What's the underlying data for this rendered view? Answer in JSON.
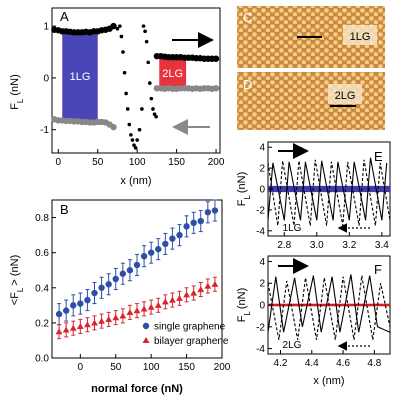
{
  "figure": {
    "panels": {
      "A": {
        "letter": "A",
        "xlabel": "x (nm)",
        "ylabel": "F",
        "ylabel_sub": "L",
        "ylabel_unit": "(nN)",
        "xticks": [
          "0",
          "50",
          "100",
          "150",
          "200"
        ],
        "yticks": [
          "1",
          "0",
          "-1"
        ],
        "region_labels": [
          "1LG",
          "2LG"
        ],
        "colors": {
          "region_1lg": "#4a46b8",
          "region_2lg": "#e8333f",
          "trace": "#000000",
          "retrace": "#888888",
          "arrow_retrace": "#888888"
        }
      },
      "B": {
        "letter": "B",
        "xlabel": "normal force (nN)",
        "ylabel": "<F",
        "ylabel_sub": "L",
        "ylabel_unit": "> (nN)",
        "xticks": [
          "0",
          "50",
          "100",
          "150",
          "200"
        ],
        "yticks": [
          "0.0",
          "0.2",
          "0.4",
          "0.6",
          "0.8"
        ],
        "legend": [
          {
            "label": "single graphene",
            "color": "#2e4fa8",
            "marker": "circle"
          },
          {
            "label": "bilayer graphene",
            "color": "#d9262e",
            "marker": "triangle"
          }
        ]
      },
      "C": {
        "letter": "C",
        "label": "1LG",
        "tone": "#d99a52"
      },
      "D": {
        "letter": "D",
        "label": "2LG",
        "tone": "#d99a52"
      },
      "E": {
        "letter": "E",
        "label": "1LG",
        "ylabel": "F",
        "ylabel_sub": "L",
        "ylabel_unit": "(nN)",
        "xticks": [
          "2.8",
          "3.0",
          "3.2",
          "3.4"
        ],
        "yticks": [
          "4",
          "2",
          "0",
          "-2",
          "-4"
        ],
        "band_color": "#3c3cb0"
      },
      "F": {
        "letter": "F",
        "label": "2LG",
        "xlabel": "x (nm)",
        "ylabel": "F",
        "ylabel_sub": "L",
        "ylabel_unit": "(nN)",
        "xticks": [
          "4.2",
          "4.4",
          "4.6",
          "4.8"
        ],
        "yticks": [
          "4",
          "2",
          "0",
          "-2",
          "-4"
        ],
        "band_color": "#d21f26"
      }
    }
  },
  "chart_data": [
    {
      "type": "scatter",
      "panel": "A",
      "xlabel": "x (nm)",
      "ylabel": "F_L (nN)",
      "xlim": [
        -8,
        205
      ],
      "ylim": [
        -1.45,
        1.35
      ],
      "series": [
        {
          "x": [
            -5,
            0,
            5,
            10,
            15,
            20,
            25,
            30,
            35,
            40,
            45,
            50,
            55,
            60,
            65,
            70
          ],
          "values": [
            0.93,
            0.92,
            0.9,
            0.9,
            0.89,
            0.88,
            0.88,
            0.88,
            0.89,
            0.88,
            0.9,
            0.9,
            0.92,
            0.93,
            0.95,
            1.0
          ]
        },
        {
          "x": [
            -5,
            0,
            5,
            10,
            15,
            20,
            25,
            30,
            35,
            40,
            45,
            50,
            55,
            60,
            65,
            70
          ],
          "values": [
            -0.8,
            -0.82,
            -0.82,
            -0.83,
            -0.83,
            -0.84,
            -0.84,
            -0.85,
            -0.85,
            -0.86,
            -0.86,
            -0.85,
            -0.85,
            -0.86,
            -0.9,
            -0.95
          ]
        },
        {
          "x": [
            75,
            78,
            80,
            82,
            84,
            86,
            88,
            90,
            92,
            94,
            96,
            98,
            100,
            103,
            106
          ],
          "values": [
            0.95,
            1.0,
            0.8,
            0.5,
            0.1,
            -0.3,
            -0.6,
            -0.9,
            -1.1,
            -1.2,
            -1.3,
            -1.35,
            -1.2,
            -1.0,
            -0.6
          ]
        },
        {
          "x": [
            108,
            110,
            112,
            114,
            116,
            118,
            120,
            122,
            124
          ],
          "values": [
            1.0,
            0.9,
            0.7,
            0.3,
            -0.1,
            -0.4,
            -0.6,
            -0.7,
            -0.75
          ]
        },
        {
          "x": [
            125,
            130,
            135,
            140,
            145,
            150,
            155,
            160,
            165,
            170,
            175,
            180,
            185,
            190,
            195,
            200
          ],
          "values": [
            0.42,
            0.42,
            0.41,
            0.4,
            0.4,
            0.4,
            0.4,
            0.39,
            0.39,
            0.39,
            0.38,
            0.38,
            0.37,
            0.37,
            0.37,
            0.37
          ]
        },
        {
          "x": [
            125,
            130,
            135,
            140,
            145,
            150,
            155,
            160,
            165,
            170,
            175,
            180,
            185,
            190,
            195,
            200
          ],
          "values": [
            -0.2,
            -0.2,
            -0.21,
            -0.2,
            -0.21,
            -0.21,
            -0.2,
            -0.2,
            -0.2,
            -0.21,
            -0.2,
            -0.21,
            -0.2,
            -0.2,
            -0.21,
            -0.2
          ]
        }
      ]
    },
    {
      "type": "scatter",
      "panel": "B",
      "xlabel": "normal force (nN)",
      "ylabel": "<F_L> (nN)",
      "xlim": [
        -40,
        200
      ],
      "ylim": [
        0,
        0.9
      ],
      "legend": [
        "single graphene",
        "bilayer graphene"
      ],
      "series": [
        {
          "name": "single graphene",
          "x": [
            -30,
            -20,
            -10,
            0,
            10,
            20,
            30,
            40,
            50,
            60,
            70,
            80,
            90,
            100,
            110,
            120,
            130,
            140,
            150,
            160,
            170,
            180,
            190
          ],
          "values": [
            0.25,
            0.27,
            0.3,
            0.31,
            0.33,
            0.37,
            0.4,
            0.42,
            0.45,
            0.48,
            0.5,
            0.53,
            0.58,
            0.6,
            0.62,
            0.65,
            0.68,
            0.7,
            0.75,
            0.77,
            0.78,
            0.83,
            0.84
          ],
          "error": 0.06
        },
        {
          "name": "bilayer graphene",
          "x": [
            -30,
            -20,
            -10,
            0,
            10,
            20,
            30,
            40,
            50,
            60,
            70,
            80,
            90,
            100,
            110,
            120,
            130,
            140,
            150,
            160,
            170,
            180,
            190
          ],
          "values": [
            0.15,
            0.16,
            0.17,
            0.18,
            0.19,
            0.2,
            0.21,
            0.22,
            0.23,
            0.24,
            0.26,
            0.27,
            0.28,
            0.29,
            0.3,
            0.32,
            0.33,
            0.34,
            0.36,
            0.37,
            0.39,
            0.41,
            0.42
          ],
          "error": 0.04
        }
      ]
    },
    {
      "type": "line",
      "panel": "E",
      "xlabel": "",
      "ylabel": "F_L (nN)",
      "xlim": [
        2.7,
        3.45
      ],
      "ylim": [
        -4.5,
        4.5
      ],
      "series": [
        {
          "x": [
            2.7,
            2.73,
            2.8,
            2.83,
            2.9,
            2.93,
            3.0,
            3.03,
            3.1,
            3.13,
            3.2,
            3.23,
            3.3,
            3.33,
            3.4,
            3.43
          ],
          "values": [
            -3.0,
            2.5,
            -3.0,
            2.6,
            -3.0,
            2.6,
            -3.0,
            2.7,
            -3.0,
            2.6,
            -3.0,
            2.6,
            -3.0,
            3.0,
            -3.0,
            2.5
          ]
        },
        {
          "x": [
            2.7,
            2.76,
            2.79,
            2.86,
            2.89,
            2.96,
            2.99,
            3.06,
            3.09,
            3.16,
            3.19,
            3.26,
            3.29,
            3.36,
            3.39,
            3.45
          ],
          "values": [
            2.5,
            -3.5,
            2.7,
            -3.5,
            2.7,
            -3.5,
            2.8,
            -3.5,
            2.6,
            -3.5,
            2.6,
            -3.5,
            2.8,
            -3.5,
            2.5,
            -3.0
          ]
        }
      ]
    },
    {
      "type": "line",
      "panel": "F",
      "xlabel": "x (nm)",
      "ylabel": "F_L (nN)",
      "xlim": [
        4.12,
        4.9
      ],
      "ylim": [
        -4.5,
        4.5
      ],
      "series": [
        {
          "x": [
            4.12,
            4.17,
            4.22,
            4.29,
            4.34,
            4.41,
            4.46,
            4.53,
            4.58,
            4.65,
            4.7,
            4.77,
            4.82,
            4.9
          ],
          "values": [
            -2.5,
            2.6,
            -2.5,
            2.5,
            -2.0,
            2.7,
            -2.5,
            2.6,
            -2.5,
            2.8,
            -2.5,
            2.7,
            -2.0,
            -2.5
          ]
        },
        {
          "x": [
            4.12,
            4.19,
            4.24,
            4.31,
            4.36,
            4.43,
            4.48,
            4.55,
            4.6,
            4.67,
            4.72,
            4.79,
            4.84,
            4.9
          ],
          "values": [
            2.0,
            -3.2,
            2.2,
            -3.2,
            2.5,
            -3.2,
            2.5,
            -3.2,
            2.6,
            -3.2,
            2.7,
            -3.2,
            2.0,
            -2.0
          ]
        }
      ]
    }
  ]
}
